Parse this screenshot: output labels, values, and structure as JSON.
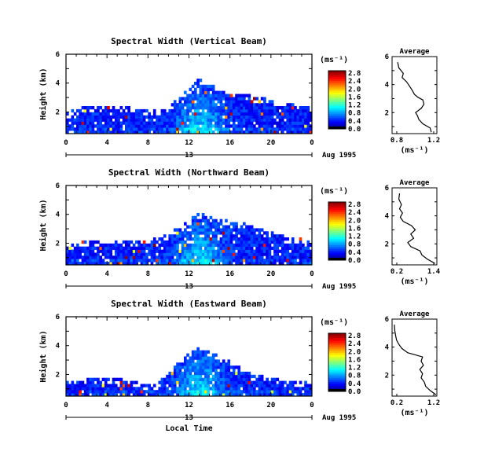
{
  "chart_data": [
    {
      "type": "heatmap",
      "title": "Spectral Width (Vertical Beam)",
      "ylabel": "Height (km)",
      "xlabel": "",
      "xlim": [
        0,
        24
      ],
      "ylim": [
        0.5,
        6
      ],
      "xticks": [
        "0",
        "4",
        "8",
        "12",
        "16",
        "20",
        "0"
      ],
      "yticks": [
        "2",
        "4",
        "6"
      ],
      "date_day": "13",
      "date_label": "Aug 1995",
      "colorbar": {
        "unit": "(ms⁻¹)",
        "ticks": [
          "0.0",
          "0.4",
          "0.8",
          "1.2",
          "1.6",
          "2.0",
          "2.4",
          "2.8"
        ],
        "max": 2.8
      },
      "surface": [
        [
          0,
          1.8
        ],
        [
          2,
          2.3
        ],
        [
          4,
          2.2
        ],
        [
          6,
          2.2
        ],
        [
          8,
          2.0
        ],
        [
          10,
          2.2
        ],
        [
          11,
          2.8
        ],
        [
          12,
          3.5
        ],
        [
          13,
          4.3
        ],
        [
          14,
          3.8
        ],
        [
          15,
          3.4
        ],
        [
          16,
          3.0
        ],
        [
          17,
          3.2
        ],
        [
          18,
          3.0
        ],
        [
          20,
          2.7
        ],
        [
          22,
          2.4
        ],
        [
          24,
          2.2
        ]
      ],
      "average": {
        "title": "Average",
        "xlabel": "(ms⁻¹)",
        "xticks": [
          "0.8",
          "1.2"
        ],
        "yticks": [
          "2",
          "4",
          "6"
        ],
        "xlim": [
          0.6,
          1.4
        ],
        "height": [
          0.6,
          0.9,
          1.2,
          1.5,
          1.8,
          2.0,
          2.3,
          2.6,
          2.9,
          3.1,
          3.3,
          3.6,
          3.9,
          4.2,
          4.5,
          4.8,
          5.2,
          5.6
        ],
        "value": [
          1.3,
          1.28,
          1.15,
          1.08,
          1.05,
          1.02,
          1.12,
          1.17,
          1.15,
          1.06,
          1.0,
          0.96,
          0.91,
          0.86,
          0.78,
          0.8,
          0.72,
          0.7
        ]
      }
    },
    {
      "type": "heatmap",
      "title": "Spectral Width (Northward Beam)",
      "ylabel": "Height (km)",
      "xlabel": "",
      "xlim": [
        0,
        24
      ],
      "ylim": [
        0.5,
        6
      ],
      "xticks": [
        "0",
        "4",
        "8",
        "12",
        "16",
        "20",
        "0"
      ],
      "yticks": [
        "2",
        "4",
        "6"
      ],
      "date_day": "13",
      "date_label": "Aug 1995",
      "colorbar": {
        "unit": "(ms⁻¹)",
        "ticks": [
          "0.0",
          "0.4",
          "0.8",
          "1.2",
          "1.6",
          "2.0",
          "2.4",
          "2.8"
        ],
        "max": 2.8
      },
      "surface": [
        [
          0,
          1.7
        ],
        [
          2,
          2.0
        ],
        [
          4,
          1.9
        ],
        [
          6,
          2.0
        ],
        [
          8,
          2.1
        ],
        [
          10,
          2.5
        ],
        [
          11,
          3.0
        ],
        [
          12,
          3.5
        ],
        [
          13,
          3.9
        ],
        [
          14,
          3.8
        ],
        [
          15,
          3.5
        ],
        [
          16,
          3.4
        ],
        [
          17,
          3.4
        ],
        [
          18,
          3.1
        ],
        [
          20,
          2.6
        ],
        [
          22,
          2.2
        ],
        [
          24,
          2.1
        ]
      ],
      "average": {
        "title": "Average",
        "xlabel": "(ms⁻¹)",
        "xticks": [
          "0.2",
          "1.4"
        ],
        "yticks": [
          "2",
          "4",
          "6"
        ],
        "xlim": [
          0.2,
          1.4
        ],
        "height": [
          0.6,
          0.9,
          1.2,
          1.5,
          1.8,
          2.1,
          2.4,
          2.7,
          3.0,
          3.3,
          3.6,
          3.9,
          4.2,
          4.5,
          4.8,
          5.2,
          5.6
        ],
        "value": [
          1.35,
          1.15,
          1.0,
          0.95,
          0.7,
          0.62,
          0.78,
          0.7,
          0.82,
          0.72,
          0.5,
          0.42,
          0.48,
          0.4,
          0.45,
          0.38,
          0.4
        ]
      }
    },
    {
      "type": "heatmap",
      "title": "Spectral Width (Eastward Beam)",
      "ylabel": "Height (km)",
      "xlabel": "Local Time",
      "xlim": [
        0,
        24
      ],
      "ylim": [
        0.5,
        6
      ],
      "xticks": [
        "0",
        "4",
        "8",
        "12",
        "16",
        "20",
        "0"
      ],
      "yticks": [
        "2",
        "4",
        "6"
      ],
      "date_day": "13",
      "date_label": "Aug 1995",
      "colorbar": {
        "unit": "(ms⁻¹)",
        "ticks": [
          "0.0",
          "0.4",
          "0.8",
          "1.2",
          "1.6",
          "2.0",
          "2.4",
          "2.8"
        ],
        "max": 2.8
      },
      "surface": [
        [
          0,
          1.3
        ],
        [
          2,
          1.6
        ],
        [
          4,
          1.6
        ],
        [
          6,
          1.5
        ],
        [
          8,
          1.2
        ],
        [
          9,
          1.3
        ],
        [
          10,
          1.9
        ],
        [
          11,
          2.7
        ],
        [
          12,
          3.3
        ],
        [
          13,
          3.8
        ],
        [
          14,
          3.5
        ],
        [
          15,
          3.1
        ],
        [
          16,
          2.8
        ],
        [
          17,
          2.3
        ],
        [
          18,
          1.9
        ],
        [
          20,
          1.6
        ],
        [
          22,
          1.4
        ],
        [
          24,
          1.4
        ]
      ],
      "average": {
        "title": "Average",
        "xlabel": "(ms⁻¹)",
        "xticks": [
          "0.2",
          "1.2"
        ],
        "yticks": [
          "2",
          "4",
          "6"
        ],
        "xlim": [
          0.2,
          1.2
        ],
        "height": [
          0.6,
          0.9,
          1.2,
          1.5,
          1.8,
          2.1,
          2.4,
          2.7,
          3.0,
          3.3,
          3.6,
          3.9,
          4.2,
          4.5,
          4.8,
          5.2,
          5.6
        ],
        "value": [
          1.18,
          1.05,
          0.95,
          0.92,
          0.85,
          0.88,
          0.82,
          0.9,
          0.85,
          0.88,
          0.55,
          0.42,
          0.35,
          0.3,
          0.28,
          0.26,
          0.25
        ]
      }
    }
  ]
}
